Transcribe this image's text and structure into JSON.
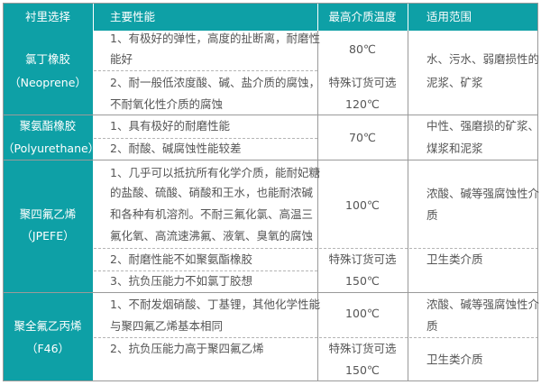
{
  "header": {
    "lining": "衬里选择",
    "properties": "主要性能",
    "max_temp": "最高介质温度",
    "scope": "适用范围"
  },
  "rows": [
    {
      "name": [
        "氯丁橡胶",
        "（Neoprene）"
      ],
      "props": [
        "1、有极好的弹性，高度的扯断离，耐磨性",
        "能好",
        "2、耐一般低浓度酸、碱、盐介质的腐蚀，",
        "不耐氧化性介质的腐蚀"
      ],
      "temps": [
        "80℃",
        "特殊订货可选",
        "120℃"
      ],
      "scope": [
        "水、污水、弱磨损性的",
        "泥浆、矿浆"
      ]
    },
    {
      "name": [
        "聚氨酯橡胶",
        "（Polyurethane）"
      ],
      "props": [
        "1、具有极好的耐磨性能",
        "2、耐酸、碱腐蚀性能较差"
      ],
      "temps": [
        "70℃"
      ],
      "scope": [
        "中性、强磨损的矿浆、",
        "煤浆和泥浆"
      ]
    },
    {
      "name": [
        "聚四氟乙烯",
        "（JPEFE）"
      ],
      "props": [
        "1、几乎可以抵抗所有化学介质，能耐妃糖",
        "的盐酸、硫酸、硝酸和王水，也能耐浓碱",
        "和各种有机溶剂。不耐三氟化氯、高温三",
        "氟化氧、高流速沸氟、液氧、臭氧的腐蚀",
        "2、耐磨性能不如聚氨酯橡胶",
        "3、抗负压能力不如氯丁胶想"
      ],
      "temps": [
        "100℃",
        "特殊订货可选",
        "150℃"
      ],
      "scope": [
        "浓酸、碱等强腐蚀性介",
        "质",
        "卫生类介质"
      ]
    },
    {
      "name": [
        "聚全氟乙丙烯",
        "（F46）"
      ],
      "props": [
        "1、不耐发烟硝酸、丁基锂，其他化学性能",
        "与聚四氟乙烯基本相同",
        "2、抗负压能力高于聚四氟乙烯"
      ],
      "temps": [
        "100℃",
        "特殊订货可选",
        "150℃"
      ],
      "scope": [
        "浓酸、碱等强腐蚀性介",
        "质",
        "卫生类介质"
      ]
    }
  ],
  "colors": {
    "header_bg": "#0ea0a6",
    "text": "#555555",
    "border": "#9a9a9a"
  }
}
